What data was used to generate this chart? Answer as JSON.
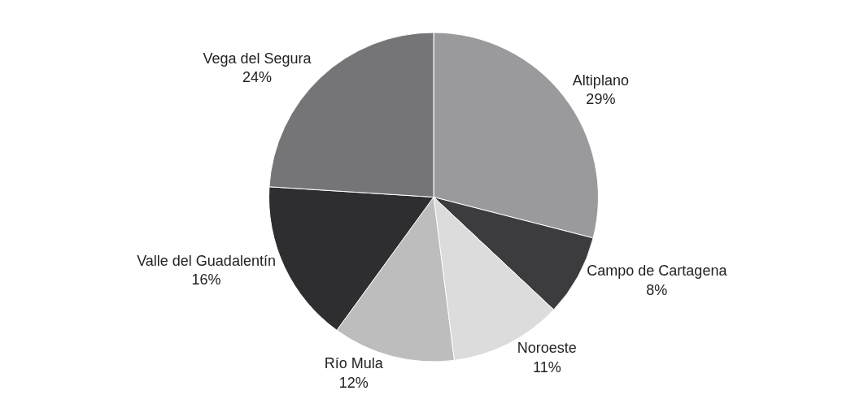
{
  "chart_data": {
    "type": "pie",
    "categories": [
      "Altiplano",
      "Campo de Cartagena",
      "Noroeste",
      "Río Mula",
      "Valle del Guadalentín",
      "Vega del Segura"
    ],
    "values": [
      29,
      8,
      11,
      12,
      16,
      24
    ],
    "value_labels": [
      "29%",
      "8%",
      "11%",
      "12%",
      "16%",
      "24%"
    ],
    "colors": [
      "#9a9a9c",
      "#3c3c3e",
      "#dcdcdc",
      "#bdbdbd",
      "#2e2e30",
      "#757578"
    ],
    "legend": false
  }
}
